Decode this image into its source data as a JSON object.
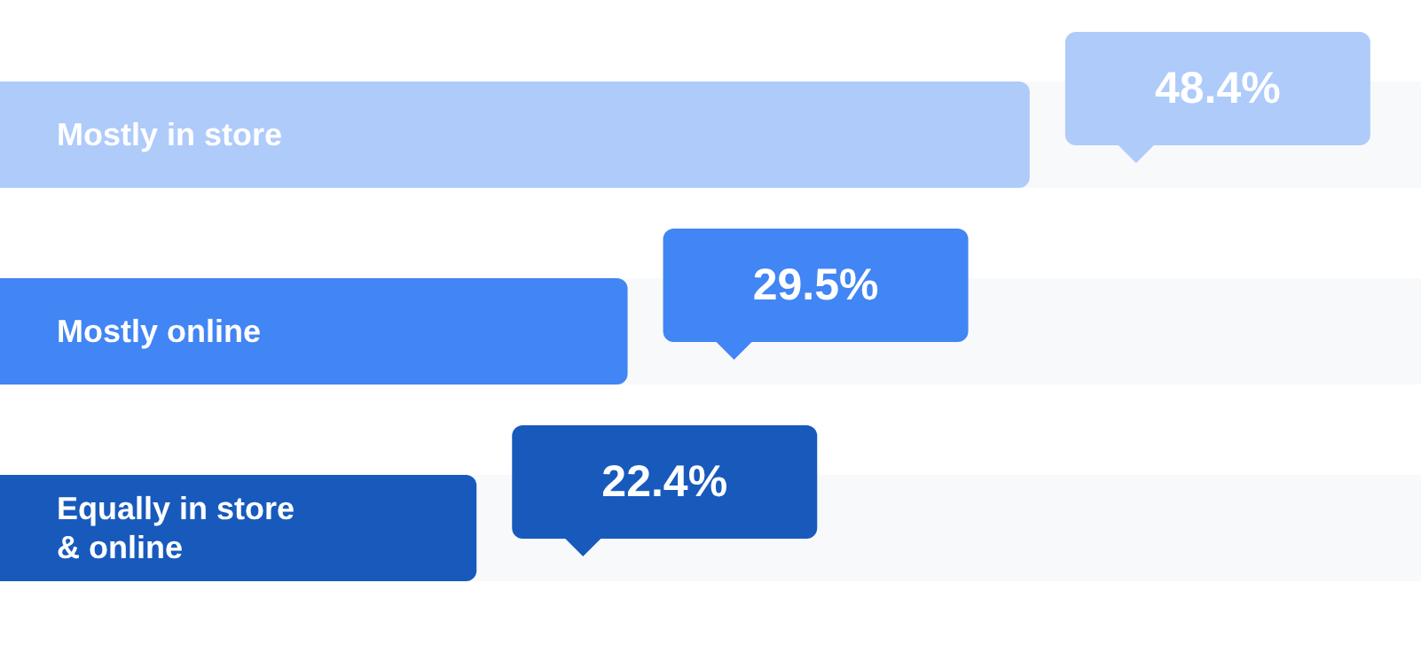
{
  "chart_data": {
    "type": "bar",
    "orientation": "horizontal",
    "categories": [
      "Mostly in store",
      "Mostly online",
      "Equally in store & online"
    ],
    "values": [
      48.4,
      29.5,
      22.4
    ],
    "colors": [
      "#aecbfa",
      "#4285f4",
      "#185abc"
    ],
    "value_labels": [
      "48.4%",
      "29.5%",
      "22.4%"
    ],
    "grid": false,
    "legend": false
  }
}
